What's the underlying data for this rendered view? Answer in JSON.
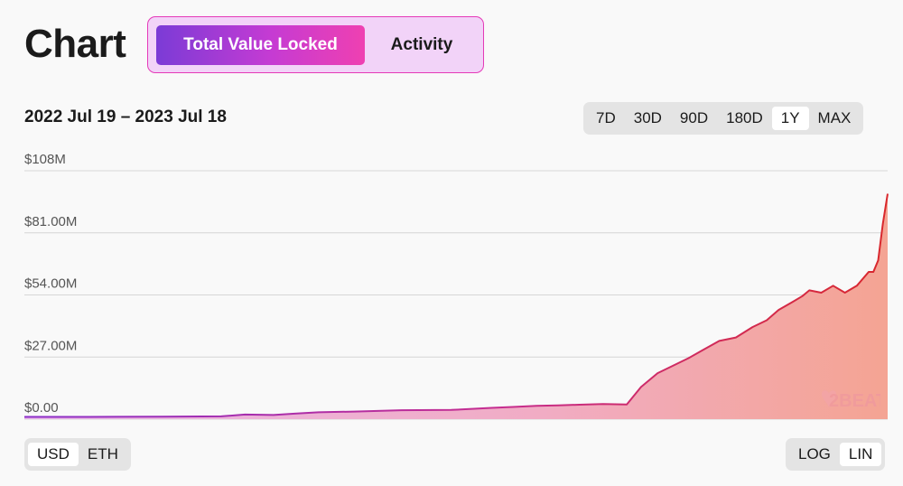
{
  "header": {
    "title": "Chart"
  },
  "tabs": [
    {
      "label": "Total Value Locked",
      "active": true
    },
    {
      "label": "Activity",
      "active": false
    }
  ],
  "date_range": "2022 Jul 19 – 2023 Jul 18",
  "range_options": [
    "7D",
    "30D",
    "90D",
    "180D",
    "1Y",
    "MAX"
  ],
  "range_selected": "1Y",
  "unit_options": [
    "USD",
    "ETH"
  ],
  "unit_selected": "USD",
  "scale_options": [
    "LOG",
    "LIN"
  ],
  "scale_selected": "LIN",
  "watermark": "L2BEAT",
  "colors": {
    "accent_purple": "#7b3bd6",
    "accent_pink": "#ef40b1",
    "line_start": "#8b2fc9",
    "line_end": "#d9282c",
    "fill_start": "#e9b7e8",
    "fill_end": "#f4a493"
  },
  "chart_data": {
    "type": "area",
    "x_range": [
      "2022-07-19",
      "2023-07-18"
    ],
    "ylim": [
      0,
      108
    ],
    "y_unit": "M USD",
    "y_ticks": [
      "$108M",
      "$81.00M",
      "$54.00M",
      "$27.00M",
      "$0.00"
    ],
    "grid": true,
    "series": [
      {
        "x": [
          "2022-07-19",
          "2022-08-15",
          "2022-09-15",
          "2022-10-10",
          "2022-10-20",
          "2022-11-01",
          "2022-11-10",
          "2022-11-20",
          "2022-12-05",
          "2022-12-25",
          "2023-01-15",
          "2023-02-01",
          "2023-02-10",
          "2023-02-20",
          "2023-03-01",
          "2023-03-10",
          "2023-03-20",
          "2023-03-30",
          "2023-04-05",
          "2023-04-12",
          "2023-04-20",
          "2023-04-25",
          "2023-05-01",
          "2023-05-08",
          "2023-05-15",
          "2023-05-22",
          "2023-05-28",
          "2023-06-02",
          "2023-06-08",
          "2023-06-12",
          "2023-06-15",
          "2023-06-20",
          "2023-06-25",
          "2023-06-30",
          "2023-07-05",
          "2023-07-10",
          "2023-07-12",
          "2023-07-14",
          "2023-07-16",
          "2023-07-18"
        ],
        "y": [
          1.0,
          1.0,
          1.1,
          1.2,
          2.0,
          1.8,
          2.4,
          3.0,
          3.3,
          3.9,
          4.0,
          4.9,
          5.3,
          5.8,
          6.0,
          6.3,
          6.6,
          6.4,
          14.0,
          20.0,
          24.0,
          26.5,
          30.0,
          34.0,
          35.5,
          40.0,
          43.0,
          47.5,
          51.0,
          53.5,
          56.0,
          55.0,
          58.0,
          55.0,
          58.0,
          64.0,
          64.0,
          69.0,
          85.0,
          98.0
        ]
      }
    ]
  }
}
